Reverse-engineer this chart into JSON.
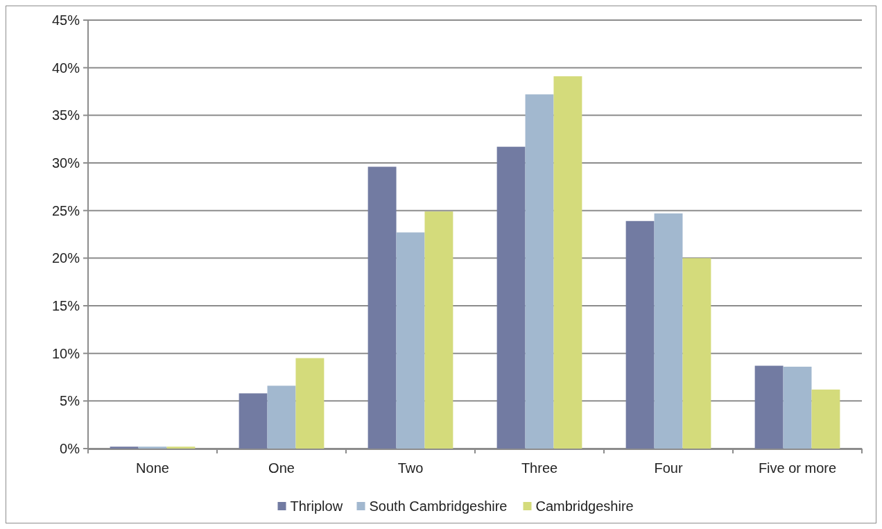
{
  "chart_data": {
    "type": "bar",
    "categories": [
      "None",
      "One",
      "Two",
      "Three",
      "Four",
      "Five or more"
    ],
    "series": [
      {
        "name": "Thriplow",
        "color": "#727ba2",
        "values": [
          0.2,
          5.8,
          29.6,
          31.7,
          23.9,
          8.7
        ]
      },
      {
        "name": "South Cambridgeshire",
        "color": "#a2b8cf",
        "values": [
          0.2,
          6.6,
          22.7,
          37.2,
          24.7,
          8.6
        ]
      },
      {
        "name": "Cambridgeshire",
        "color": "#d4db7b",
        "values": [
          0.2,
          9.5,
          24.9,
          39.1,
          20.0,
          6.2
        ]
      }
    ],
    "ylim": [
      0,
      45
    ],
    "yticks": [
      {
        "value": 0,
        "label": "0%"
      },
      {
        "value": 5,
        "label": "5%"
      },
      {
        "value": 10,
        "label": "10%"
      },
      {
        "value": 15,
        "label": "15%"
      },
      {
        "value": 20,
        "label": "20%"
      },
      {
        "value": 25,
        "label": "25%"
      },
      {
        "value": 30,
        "label": "30%"
      },
      {
        "value": 35,
        "label": "35%"
      },
      {
        "value": 40,
        "label": "40%"
      },
      {
        "value": 45,
        "label": "45%"
      }
    ],
    "grid": "y",
    "legend": "bottom"
  }
}
